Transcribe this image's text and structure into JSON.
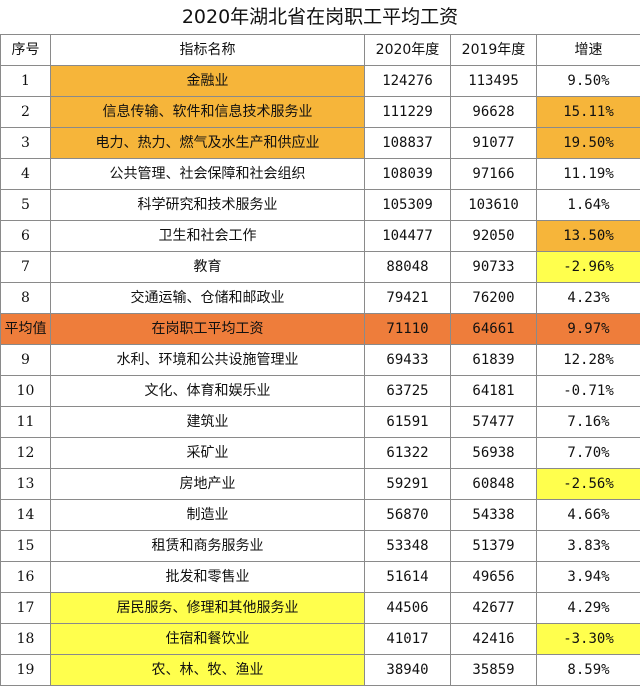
{
  "title": "2020年湖北省在岗职工平均工资",
  "headers": [
    "序号",
    "指标名称",
    "2020年度",
    "2019年度",
    "增速"
  ],
  "colors": {
    "orange": "#f6b53a",
    "yellow": "#ffff4d",
    "average_row": "#ee7d3b"
  },
  "rows": [
    {
      "seq": "1",
      "name": "金融业",
      "y2020": "124276",
      "y2019": "113495",
      "growth": "9.50%",
      "hl_name": "orange",
      "hl_growth": ""
    },
    {
      "seq": "2",
      "name": "信息传输、软件和信息技术服务业",
      "y2020": "111229",
      "y2019": "96628",
      "growth": "15.11%",
      "hl_name": "orange",
      "hl_growth": "orange"
    },
    {
      "seq": "3",
      "name": "电力、热力、燃气及水生产和供应业",
      "y2020": "108837",
      "y2019": "91077",
      "growth": "19.50%",
      "hl_name": "orange",
      "hl_growth": "orange"
    },
    {
      "seq": "4",
      "name": "公共管理、社会保障和社会组织",
      "y2020": "108039",
      "y2019": "97166",
      "growth": "11.19%",
      "hl_name": "",
      "hl_growth": ""
    },
    {
      "seq": "5",
      "name": "科学研究和技术服务业",
      "y2020": "105309",
      "y2019": "103610",
      "growth": "1.64%",
      "hl_name": "",
      "hl_growth": ""
    },
    {
      "seq": "6",
      "name": "卫生和社会工作",
      "y2020": "104477",
      "y2019": "92050",
      "growth": "13.50%",
      "hl_name": "",
      "hl_growth": "orange"
    },
    {
      "seq": "7",
      "name": "教育",
      "y2020": "88048",
      "y2019": "90733",
      "growth": "-2.96%",
      "hl_name": "",
      "hl_growth": "yellow"
    },
    {
      "seq": "8",
      "name": "交通运输、仓储和邮政业",
      "y2020": "79421",
      "y2019": "76200",
      "growth": "4.23%",
      "hl_name": "",
      "hl_growth": ""
    },
    {
      "seq": "平均值",
      "name": "在岗职工平均工资",
      "y2020": "71110",
      "y2019": "64661",
      "growth": "9.97%",
      "hl_name": "",
      "hl_growth": "",
      "average": true
    },
    {
      "seq": "9",
      "name": "水利、环境和公共设施管理业",
      "y2020": "69433",
      "y2019": "61839",
      "growth": "12.28%",
      "hl_name": "",
      "hl_growth": ""
    },
    {
      "seq": "10",
      "name": "文化、体育和娱乐业",
      "y2020": "63725",
      "y2019": "64181",
      "growth": "-0.71%",
      "hl_name": "",
      "hl_growth": ""
    },
    {
      "seq": "11",
      "name": "建筑业",
      "y2020": "61591",
      "y2019": "57477",
      "growth": "7.16%",
      "hl_name": "",
      "hl_growth": ""
    },
    {
      "seq": "12",
      "name": "采矿业",
      "y2020": "61322",
      "y2019": "56938",
      "growth": "7.70%",
      "hl_name": "",
      "hl_growth": ""
    },
    {
      "seq": "13",
      "name": "房地产业",
      "y2020": "59291",
      "y2019": "60848",
      "growth": "-2.56%",
      "hl_name": "",
      "hl_growth": "yellow"
    },
    {
      "seq": "14",
      "name": "制造业",
      "y2020": "56870",
      "y2019": "54338",
      "growth": "4.66%",
      "hl_name": "",
      "hl_growth": ""
    },
    {
      "seq": "15",
      "name": "租赁和商务服务业",
      "y2020": "53348",
      "y2019": "51379",
      "growth": "3.83%",
      "hl_name": "",
      "hl_growth": ""
    },
    {
      "seq": "16",
      "name": "批发和零售业",
      "y2020": "51614",
      "y2019": "49656",
      "growth": "3.94%",
      "hl_name": "",
      "hl_growth": ""
    },
    {
      "seq": "17",
      "name": "居民服务、修理和其他服务业",
      "y2020": "44506",
      "y2019": "42677",
      "growth": "4.29%",
      "hl_name": "yellow",
      "hl_growth": ""
    },
    {
      "seq": "18",
      "name": "住宿和餐饮业",
      "y2020": "41017",
      "y2019": "42416",
      "growth": "-3.30%",
      "hl_name": "yellow",
      "hl_growth": "yellow"
    },
    {
      "seq": "19",
      "name": "农、林、牧、渔业",
      "y2020": "38940",
      "y2019": "35859",
      "growth": "8.59%",
      "hl_name": "yellow",
      "hl_growth": ""
    }
  ]
}
